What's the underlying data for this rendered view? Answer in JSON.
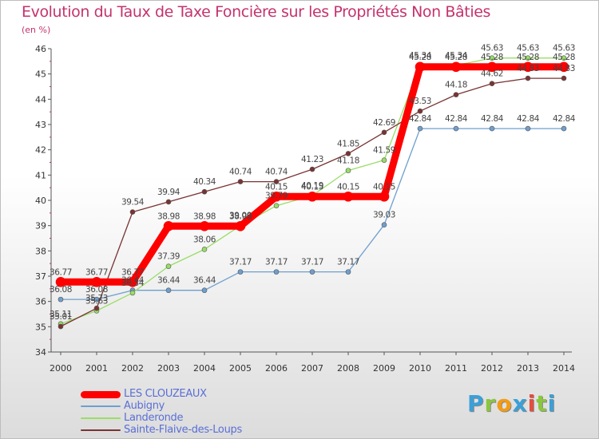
{
  "chart_data": {
    "type": "line",
    "title": "Evolution du Taux de Taxe Foncière sur les Propriétés Non Bâties",
    "subtitle": "(en %)",
    "x": [
      "2000",
      "2001",
      "2002",
      "2003",
      "2004",
      "2005",
      "2006",
      "2007",
      "2008",
      "2009",
      "2010",
      "2011",
      "2012",
      "2013",
      "2014"
    ],
    "ylim": [
      34,
      46
    ],
    "yticks": [
      34,
      35,
      36,
      37,
      38,
      39,
      40,
      41,
      42,
      43,
      44,
      45,
      46
    ],
    "grid": false,
    "legend_position": "bottom-left",
    "series": [
      {
        "name": "LES CLOUZEAUX",
        "color": "#ff0000",
        "values": [
          36.77,
          36.77,
          36.77,
          38.98,
          38.98,
          38.98,
          40.15,
          40.15,
          40.15,
          40.15,
          45.28,
          45.28,
          45.28,
          45.28,
          45.28
        ],
        "labels": [
          "36.77",
          "36.77",
          "36.77",
          "38.98",
          "38.98",
          "38.98",
          "40.15",
          "40.15",
          "40.15",
          "40.15",
          "45.28",
          "45.28",
          "45.28",
          "45.28",
          "45.28"
        ]
      },
      {
        "name": "Aubigny",
        "color": "#6f9fcf",
        "values": [
          36.08,
          36.08,
          36.44,
          36.44,
          36.44,
          37.17,
          37.17,
          37.17,
          37.17,
          39.03,
          42.84,
          42.84,
          42.84,
          42.84,
          42.84
        ],
        "labels": [
          "36.08",
          "36.08",
          "36.44",
          "36.44",
          "36.44",
          "37.17",
          "37.17",
          "37.17",
          "37.17",
          "39.03",
          "42.84",
          "42.84",
          "42.84",
          "42.84",
          "42.84"
        ]
      },
      {
        "name": "Landeronde",
        "color": "#99dd66",
        "values": [
          35.11,
          35.63,
          36.34,
          37.39,
          38.06,
          39.0,
          39.79,
          40.19,
          41.18,
          41.59,
          45.34,
          45.34,
          45.63,
          45.63,
          45.63
        ],
        "labels": [
          "35.11",
          "35.63",
          "36.34",
          "37.39",
          "38.06",
          "39.00",
          "39.79",
          "40.19",
          "41.18",
          "41.59",
          "45.34",
          "45.34",
          "45.63",
          "45.63",
          "45.63"
        ]
      },
      {
        "name": "Sainte-Flaive-des-Loups",
        "color": "#7a3333",
        "values": [
          35.01,
          35.73,
          39.54,
          39.94,
          40.34,
          40.74,
          40.74,
          41.23,
          41.85,
          42.69,
          43.53,
          44.18,
          44.62,
          44.83,
          44.83
        ],
        "labels": [
          "35.01",
          "35.73",
          "39.54",
          "39.94",
          "40.34",
          "40.74",
          "40.74",
          "41.23",
          "41.85",
          "42.69",
          "43.53",
          "44.18",
          "44.62",
          "44.83",
          "44.83"
        ]
      }
    ]
  },
  "logo": {
    "letters": [
      "P",
      "r",
      "o",
      "x",
      "i",
      "t",
      "i"
    ],
    "colors": [
      "#3aa0d8",
      "#8bc63f",
      "#f39c12",
      "#3aa0d8",
      "#e74c3c",
      "#8bc63f",
      "#3aa0d8"
    ]
  }
}
